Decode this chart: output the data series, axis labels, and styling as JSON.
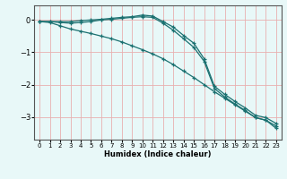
{
  "xlabel": "Humidex (Indice chaleur)",
  "ylabel": "",
  "background_color": "#e8f8f8",
  "grid_color": "#e8b0b0",
  "line_color": "#1a7070",
  "xlim": [
    -0.5,
    23.5
  ],
  "ylim": [
    -3.7,
    0.45
  ],
  "xticks": [
    0,
    1,
    2,
    3,
    4,
    5,
    6,
    7,
    8,
    9,
    10,
    11,
    12,
    13,
    14,
    15,
    16,
    17,
    18,
    19,
    20,
    21,
    22,
    23
  ],
  "yticks": [
    0,
    -1,
    -2,
    -3
  ],
  "series": {
    "line1": {
      "x": [
        0,
        1,
        2,
        3,
        4,
        5,
        6,
        7,
        8,
        9,
        10,
        11,
        12,
        13,
        14,
        15,
        16,
        17,
        18,
        19,
        20,
        21,
        22,
        23
      ],
      "y": [
        -0.05,
        -0.05,
        -0.05,
        -0.05,
        -0.02,
        0.0,
        0.02,
        0.05,
        0.08,
        0.1,
        0.15,
        0.12,
        -0.05,
        -0.22,
        -0.48,
        -0.72,
        -1.2,
        -2.05,
        -2.3,
        -2.52,
        -2.72,
        -2.95,
        -3.02,
        -3.2
      ]
    },
    "line2": {
      "x": [
        0,
        1,
        2,
        3,
        4,
        5,
        6,
        7,
        8,
        9,
        10,
        11,
        12,
        13,
        14,
        15,
        16,
        17,
        18,
        19,
        20,
        21,
        22,
        23
      ],
      "y": [
        -0.05,
        -0.05,
        -0.08,
        -0.1,
        -0.08,
        -0.05,
        0.0,
        0.02,
        0.05,
        0.08,
        0.1,
        0.08,
        -0.1,
        -0.32,
        -0.58,
        -0.85,
        -1.28,
        -2.12,
        -2.38,
        -2.6,
        -2.8,
        -3.02,
        -3.1,
        -3.28
      ]
    },
    "line3": {
      "x": [
        0,
        1,
        2,
        3,
        4,
        5,
        6,
        7,
        8,
        9,
        10,
        11,
        12,
        13,
        14,
        15,
        16,
        17,
        18,
        19,
        20,
        21,
        22,
        23
      ],
      "y": [
        -0.05,
        -0.08,
        -0.18,
        -0.28,
        -0.35,
        -0.42,
        -0.5,
        -0.58,
        -0.68,
        -0.8,
        -0.92,
        -1.05,
        -1.2,
        -1.38,
        -1.58,
        -1.78,
        -2.0,
        -2.22,
        -2.42,
        -2.62,
        -2.82,
        -3.02,
        -3.1,
        -3.35
      ]
    }
  }
}
